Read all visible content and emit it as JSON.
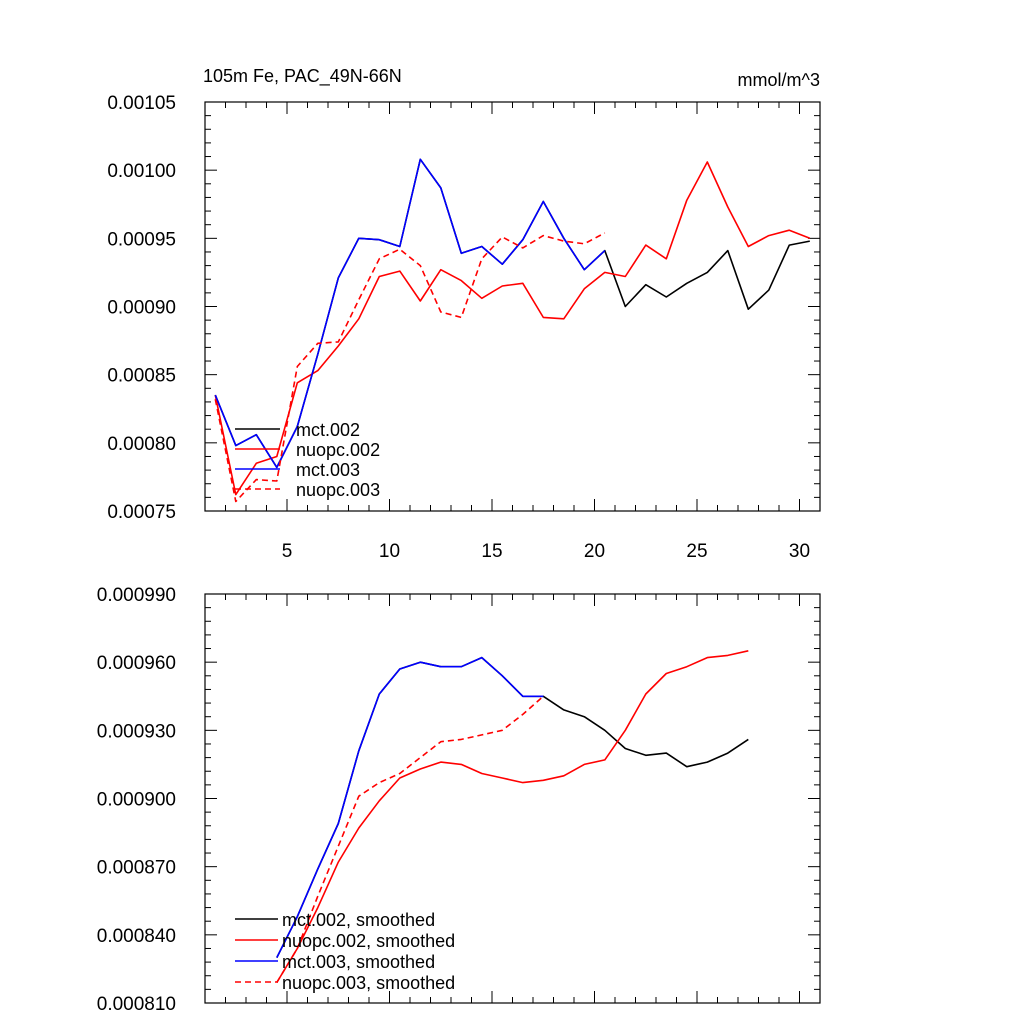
{
  "chart_data": [
    {
      "type": "line",
      "title": "105m Fe, PAC_49N-66N",
      "units": "mmol/m^3",
      "xlim": [
        1,
        31
      ],
      "ylim": [
        0.00075,
        0.00105
      ],
      "xticks": [
        5,
        10,
        15,
        20,
        25,
        30
      ],
      "xtick_labels": [
        "5",
        "10",
        "15",
        "20",
        "25",
        "30"
      ],
      "yticks": [
        0.00075,
        0.0008,
        0.00085,
        0.0009,
        0.00095,
        0.001,
        0.00105
      ],
      "ytick_labels": [
        "0.00075",
        "0.00080",
        "0.00085",
        "0.00090",
        "0.00095",
        "0.00100",
        "0.00105"
      ],
      "legend_position": "bottom-left",
      "series": [
        {
          "name": "mct.002",
          "color": "#000000",
          "dash": false,
          "x": [
            1.5,
            2.5,
            3.5,
            4.5,
            5.5,
            6.5,
            7.5,
            8.5,
            9.5,
            10.5,
            11.5,
            12.5,
            13.5,
            14.5,
            15.5,
            16.5,
            17.5,
            18.5,
            19.5,
            20.5,
            21.5,
            22.5,
            23.5,
            24.5,
            25.5,
            26.5,
            27.5,
            28.5,
            29.5,
            30.5
          ],
          "values": [
            0.000835,
            0.000798,
            0.000806,
            0.000782,
            0.000812,
            0.000865,
            0.000921,
            0.00095,
            0.000949,
            0.000944,
            0.001008,
            0.000987,
            0.000939,
            0.000944,
            0.000931,
            0.000949,
            0.000977,
            0.00095,
            0.000927,
            0.000941,
            0.0009,
            0.000916,
            0.000907,
            0.000917,
            0.000925,
            0.000941,
            0.000898,
            0.000912,
            0.000945,
            0.000948
          ]
        },
        {
          "name": "nuopc.002",
          "color": "#ff0000",
          "dash": false,
          "x": [
            1.5,
            2.5,
            3.5,
            4.5,
            5.5,
            6.5,
            7.5,
            8.5,
            9.5,
            10.5,
            11.5,
            12.5,
            13.5,
            14.5,
            15.5,
            16.5,
            17.5,
            18.5,
            19.5,
            20.5,
            21.5,
            22.5,
            23.5,
            24.5,
            25.5,
            26.5,
            27.5,
            28.5,
            29.5,
            30.5
          ],
          "values": [
            0.000835,
            0.000762,
            0.000785,
            0.00079,
            0.000844,
            0.000853,
            0.000871,
            0.000891,
            0.000922,
            0.000926,
            0.000904,
            0.000927,
            0.000919,
            0.000906,
            0.000915,
            0.000917,
            0.000892,
            0.000891,
            0.000913,
            0.000925,
            0.000922,
            0.000945,
            0.000935,
            0.000978,
            0.001006,
            0.000973,
            0.000944,
            0.000952,
            0.000956,
            0.00095
          ]
        },
        {
          "name": "mct.003",
          "color": "#0000ff",
          "dash": false,
          "x": [
            1.5,
            2.5,
            3.5,
            4.5,
            5.5,
            6.5,
            7.5,
            8.5,
            9.5,
            10.5,
            11.5,
            12.5,
            13.5,
            14.5,
            15.5,
            16.5,
            17.5,
            18.5,
            19.5,
            20.5
          ],
          "values": [
            0.000835,
            0.000798,
            0.000806,
            0.000782,
            0.000812,
            0.000865,
            0.000921,
            0.00095,
            0.000949,
            0.000944,
            0.001008,
            0.000987,
            0.000939,
            0.000944,
            0.000931,
            0.000949,
            0.000977,
            0.00095,
            0.000927,
            0.000941
          ]
        },
        {
          "name": "nuopc.003",
          "color": "#ff0000",
          "dash": true,
          "x": [
            1.5,
            2.5,
            3.5,
            4.5,
            5.5,
            6.5,
            7.5,
            8.5,
            9.5,
            10.5,
            11.5,
            12.5,
            13.5,
            14.5,
            15.5,
            16.5,
            17.5,
            18.5,
            19.5,
            20.5
          ],
          "values": [
            0.000832,
            0.000757,
            0.000773,
            0.000772,
            0.000856,
            0.000873,
            0.000874,
            0.000905,
            0.000935,
            0.000942,
            0.00093,
            0.000896,
            0.000892,
            0.000935,
            0.000951,
            0.000943,
            0.000952,
            0.000948,
            0.000946,
            0.000954
          ]
        }
      ]
    },
    {
      "type": "line",
      "xlim": [
        1,
        31
      ],
      "ylim": [
        0.00081,
        0.00099
      ],
      "xticks": [
        5,
        10,
        15,
        20,
        25,
        30
      ],
      "yticks": [
        0.00081,
        0.00084,
        0.00087,
        0.0009,
        0.00093,
        0.00096,
        0.00099
      ],
      "ytick_labels": [
        "0.000810",
        "0.000840",
        "0.000870",
        "0.000900",
        "0.000930",
        "0.000960",
        "0.000990"
      ],
      "legend_position": "bottom-left",
      "series": [
        {
          "name": "mct.002, smoothed",
          "color": "#000000",
          "dash": false,
          "x": [
            4.5,
            5.5,
            6.5,
            7.5,
            8.5,
            9.5,
            10.5,
            11.5,
            12.5,
            13.5,
            14.5,
            15.5,
            16.5,
            17.5,
            18.5,
            19.5,
            20.5,
            21.5,
            22.5,
            23.5,
            24.5,
            25.5,
            26.5,
            27.5
          ],
          "values": [
            0.00083,
            0.000848,
            0.000869,
            0.000889,
            0.000921,
            0.000946,
            0.000957,
            0.00096,
            0.000958,
            0.000958,
            0.000962,
            0.000954,
            0.000945,
            0.000945,
            0.000939,
            0.000936,
            0.00093,
            0.000922,
            0.000919,
            0.00092,
            0.000914,
            0.000916,
            0.00092,
            0.000926
          ]
        },
        {
          "name": "nuopc.002, smoothed",
          "color": "#ff0000",
          "dash": false,
          "x": [
            4.5,
            5.5,
            6.5,
            7.5,
            8.5,
            9.5,
            10.5,
            11.5,
            12.5,
            13.5,
            14.5,
            15.5,
            16.5,
            17.5,
            18.5,
            19.5,
            20.5,
            21.5,
            22.5,
            23.5,
            24.5,
            25.5,
            26.5,
            27.5
          ],
          "values": [
            0.000819,
            0.000834,
            0.000852,
            0.000872,
            0.000887,
            0.000899,
            0.000909,
            0.000913,
            0.000916,
            0.000915,
            0.000911,
            0.000909,
            0.000907,
            0.000908,
            0.00091,
            0.000915,
            0.000917,
            0.00093,
            0.000946,
            0.000955,
            0.000958,
            0.000962,
            0.000963,
            0.000965
          ]
        },
        {
          "name": "mct.003, smoothed",
          "color": "#0000ff",
          "dash": false,
          "x": [
            4.5,
            5.5,
            6.5,
            7.5,
            8.5,
            9.5,
            10.5,
            11.5,
            12.5,
            13.5,
            14.5,
            15.5,
            16.5,
            17.5
          ],
          "values": [
            0.00083,
            0.000848,
            0.000869,
            0.000889,
            0.000921,
            0.000946,
            0.000957,
            0.00096,
            0.000958,
            0.000958,
            0.000962,
            0.000954,
            0.000945,
            0.000945
          ]
        },
        {
          "name": "nuopc.003, smoothed",
          "color": "#ff0000",
          "dash": true,
          "x": [
            4.5,
            5.5,
            6.5,
            7.5,
            8.5,
            9.5,
            10.5,
            11.5,
            12.5,
            13.5,
            14.5,
            15.5,
            16.5,
            17.5
          ],
          "values": [
            0.000819,
            0.000834,
            0.000857,
            0.000879,
            0.000901,
            0.000907,
            0.000911,
            0.000918,
            0.000925,
            0.000926,
            0.000928,
            0.00093,
            0.000937,
            0.000945
          ]
        }
      ]
    }
  ]
}
